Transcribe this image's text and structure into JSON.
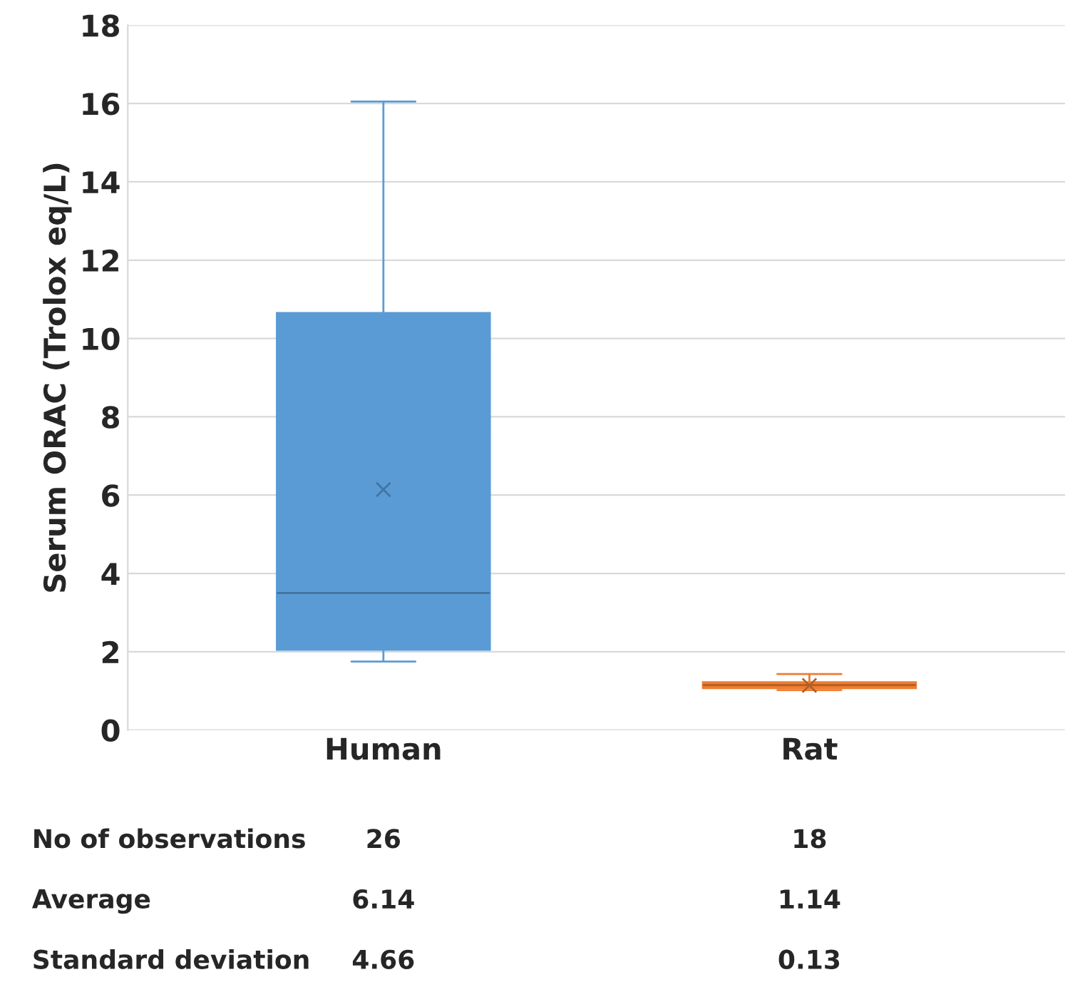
{
  "chart_data": {
    "type": "box",
    "ylabel": "Serum ORAC (Trolox eq/L)",
    "categories": [
      "Human",
      "Rat"
    ],
    "boxes": [
      {
        "low": 1.75,
        "q1": 2.05,
        "median": 3.5,
        "q3": 10.65,
        "high": 16.05,
        "mean": 6.14
      },
      {
        "low": 1.02,
        "q1": 1.07,
        "median": 1.15,
        "q3": 1.22,
        "high": 1.43,
        "mean": 1.14
      }
    ],
    "colors": [
      "#5b9bd5",
      "#ed7d31"
    ],
    "ylim": [
      0,
      18
    ],
    "yticks": [
      0,
      2,
      4,
      6,
      8,
      10,
      12,
      14,
      16,
      18
    ],
    "grid": "y",
    "annotations": [
      "No of observations",
      "26",
      "18",
      "Average",
      "6.14",
      "1.14",
      "Standard deviation",
      "4.66",
      "0.13"
    ]
  }
}
